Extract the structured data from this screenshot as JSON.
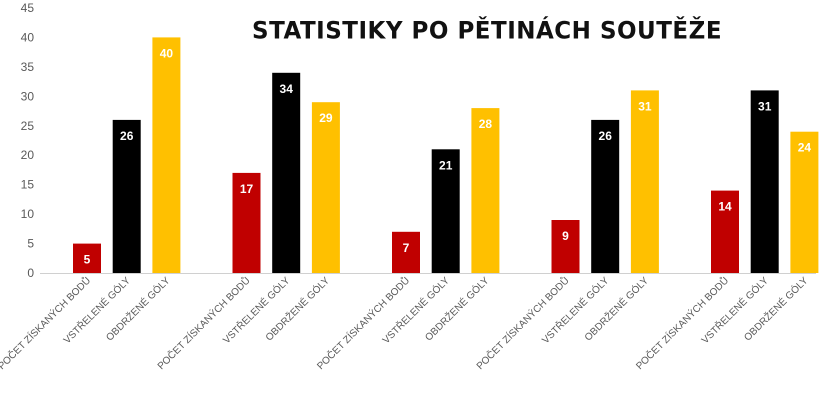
{
  "chart_data": {
    "type": "bar",
    "title": "STATISTIKY PO PĚTINÁCH SOUTĚŽE",
    "ylim": [
      0,
      45
    ],
    "yticks": [
      0,
      5,
      10,
      15,
      20,
      25,
      30,
      35,
      40,
      45
    ],
    "grid": false,
    "categories": [
      "POČET ZÍSKANÝCH BODŮ",
      "VSTŘELENÉ GÓLY",
      "OBDRŽENÉ GÓLY",
      "POČET ZÍSKANÝCH BODŮ",
      "VSTŘELENÉ GÓLY",
      "OBDRŽENÉ GÓLY",
      "POČET ZÍSKANÝCH BODŮ",
      "VSTŘELENÉ GÓLY",
      "OBDRŽENÉ GÓLY",
      "POČET ZÍSKANÝCH BODŮ",
      "VSTŘELENÉ GÓLY",
      "OBDRŽENÉ GÓLY",
      "POČET ZÍSKANÝCH BODŮ",
      "VSTŘELENÉ GÓLY",
      "OBDRŽENÉ GÓLY"
    ],
    "values": [
      5,
      26,
      40,
      17,
      34,
      29,
      7,
      21,
      28,
      9,
      26,
      31,
      14,
      31,
      24
    ],
    "colors": {
      "POČET ZÍSKANÝCH BODŮ": "#c00000",
      "VSTŘELENÉ GÓLY": "#000000",
      "OBDRŽENÉ GÓLY": "#ffc000"
    },
    "axis_color": "#d0d0d0",
    "tick_label_color": "#595959"
  }
}
